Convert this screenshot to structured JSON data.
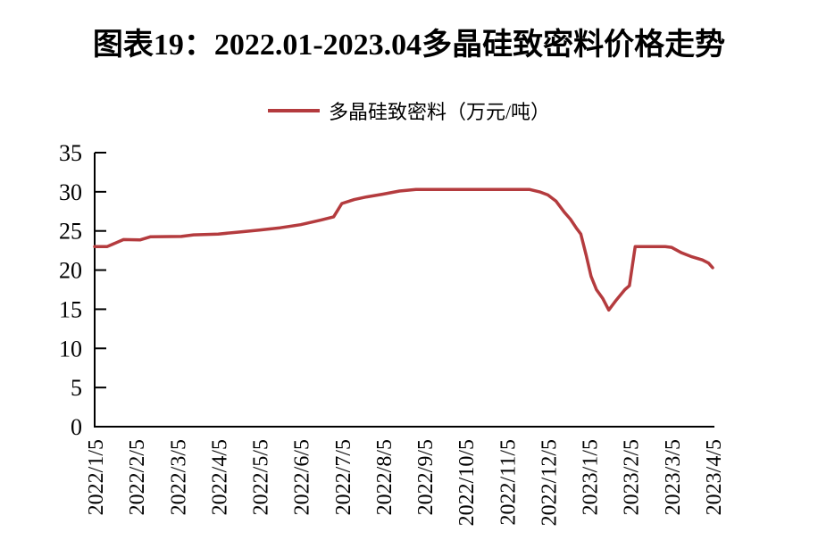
{
  "header": {
    "title": "图表19：2022.01-2023.04多晶硅致密料价格走势"
  },
  "legend": {
    "label": "多晶硅致密料（万元/吨）"
  },
  "chart_data": {
    "type": "line",
    "title": "图表19：2022.01-2023.04多晶硅致密料价格走势",
    "xlabel": "",
    "ylabel": "",
    "unit": "万元/吨",
    "ylim": [
      0,
      35
    ],
    "y_ticks": [
      0,
      5,
      10,
      15,
      20,
      25,
      30,
      35
    ],
    "x_tick_labels": [
      "2022/1/5",
      "2022/2/5",
      "2022/3/5",
      "2022/4/5",
      "2022/5/5",
      "2022/6/5",
      "2022/7/5",
      "2022/8/5",
      "2022/9/5",
      "2022/10/5",
      "2022/11/5",
      "2022/12/5",
      "2023/1/5",
      "2023/2/5",
      "2023/3/5",
      "2023/4/5"
    ],
    "grid": false,
    "legend_position": "top",
    "legend_entries": [
      "多晶硅致密料（万元/吨）"
    ],
    "line_color": "#B43B3E",
    "axis_color": "#000000",
    "series": [
      {
        "name": "多晶硅致密料",
        "points": [
          {
            "m": 0.0,
            "date": "2022/1/5",
            "v": 23.0
          },
          {
            "m": 0.3,
            "date": "2022/1/14",
            "v": 23.0
          },
          {
            "m": 0.7,
            "date": "2022/1/26",
            "v": 23.9
          },
          {
            "m": 1.1,
            "date": "2022/2/8",
            "v": 23.85
          },
          {
            "m": 1.35,
            "date": "2022/2/15",
            "v": 24.25
          },
          {
            "m": 2.1,
            "date": "2022/3/8",
            "v": 24.3
          },
          {
            "m": 2.4,
            "date": "2022/3/17",
            "v": 24.5
          },
          {
            "m": 3.0,
            "date": "2022/4/5",
            "v": 24.6
          },
          {
            "m": 3.5,
            "date": "2022/4/20",
            "v": 24.85
          },
          {
            "m": 4.0,
            "date": "2022/5/5",
            "v": 25.1
          },
          {
            "m": 4.5,
            "date": "2022/5/20",
            "v": 25.4
          },
          {
            "m": 5.0,
            "date": "2022/6/5",
            "v": 25.8
          },
          {
            "m": 5.5,
            "date": "2022/6/20",
            "v": 26.4
          },
          {
            "m": 5.8,
            "date": "2022/6/29",
            "v": 26.8
          },
          {
            "m": 6.0,
            "date": "2022/7/5",
            "v": 28.5
          },
          {
            "m": 6.3,
            "date": "2022/7/14",
            "v": 29.0
          },
          {
            "m": 6.6,
            "date": "2022/7/23",
            "v": 29.35
          },
          {
            "m": 7.0,
            "date": "2022/8/5",
            "v": 29.7
          },
          {
            "m": 7.4,
            "date": "2022/8/17",
            "v": 30.1
          },
          {
            "m": 7.8,
            "date": "2022/8/29",
            "v": 30.3
          },
          {
            "m": 8.5,
            "date": "2022/9/20",
            "v": 30.3
          },
          {
            "m": 9.0,
            "date": "2022/10/5",
            "v": 30.3
          },
          {
            "m": 9.5,
            "date": "2022/10/20",
            "v": 30.3
          },
          {
            "m": 10.0,
            "date": "2022/11/5",
            "v": 30.3
          },
          {
            "m": 10.55,
            "date": "2022/11/21",
            "v": 30.3
          },
          {
            "m": 10.8,
            "date": "2022/11/29",
            "v": 30.0
          },
          {
            "m": 11.0,
            "date": "2022/12/5",
            "v": 29.6
          },
          {
            "m": 11.2,
            "date": "2022/12/11",
            "v": 28.8
          },
          {
            "m": 11.4,
            "date": "2022/12/17",
            "v": 27.4
          },
          {
            "m": 11.55,
            "date": "2022/12/21",
            "v": 26.5
          },
          {
            "m": 11.7,
            "date": "2022/12/26",
            "v": 25.3
          },
          {
            "m": 11.8,
            "date": "2022/12/29",
            "v": 24.6
          },
          {
            "m": 11.93,
            "date": "2023/1/3",
            "v": 21.9
          },
          {
            "m": 12.05,
            "date": "2023/1/6",
            "v": 19.2
          },
          {
            "m": 12.18,
            "date": "2023/1/10",
            "v": 17.5
          },
          {
            "m": 12.33,
            "date": "2023/1/15",
            "v": 16.4
          },
          {
            "m": 12.48,
            "date": "2023/1/19",
            "v": 14.9
          },
          {
            "m": 12.65,
            "date": "2023/1/24",
            "v": 16.1
          },
          {
            "m": 12.87,
            "date": "2023/1/31",
            "v": 17.5
          },
          {
            "m": 12.98,
            "date": "2023/2/4",
            "v": 18.0
          },
          {
            "m": 13.12,
            "date": "2023/2/8",
            "v": 23.0
          },
          {
            "m": 13.5,
            "date": "2023/2/20",
            "v": 23.0
          },
          {
            "m": 13.85,
            "date": "2023/3/1",
            "v": 23.0
          },
          {
            "m": 14.0,
            "date": "2023/3/5",
            "v": 22.9
          },
          {
            "m": 14.25,
            "date": "2023/3/12",
            "v": 22.2
          },
          {
            "m": 14.5,
            "date": "2023/3/20",
            "v": 21.7
          },
          {
            "m": 14.75,
            "date": "2023/3/27",
            "v": 21.3
          },
          {
            "m": 14.9,
            "date": "2023/3/31",
            "v": 20.9
          },
          {
            "m": 15.0,
            "date": "2023/4/5",
            "v": 20.3
          }
        ]
      }
    ]
  }
}
